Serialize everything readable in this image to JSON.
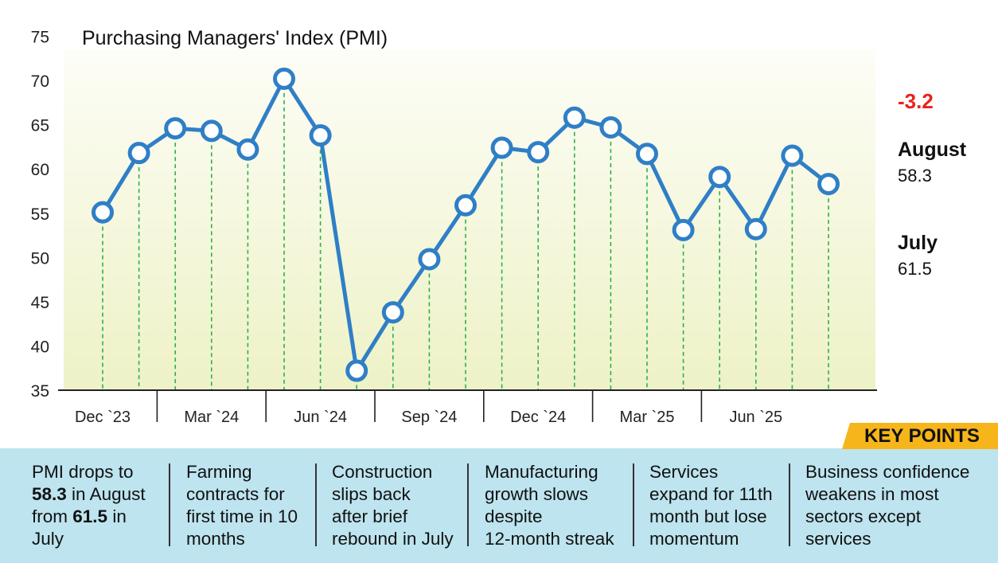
{
  "chart_data": {
    "type": "line",
    "title": "Purchasing Managers' Index (PMI)",
    "xlabel": "",
    "ylabel": "",
    "ylim": [
      35,
      75
    ],
    "yticks": [
      35,
      40,
      45,
      50,
      55,
      60,
      65,
      70,
      75
    ],
    "ytick_labels": [
      "35",
      "40",
      "45",
      "50",
      "55",
      "60",
      "65",
      "70",
      "75"
    ],
    "x": [
      "Dec '23",
      "Jan '24",
      "Feb '24",
      "Mar '24",
      "Apr '24",
      "May '24",
      "Jun '24",
      "Jul '24",
      "Aug '24",
      "Sep '24",
      "Oct '24",
      "Nov '24",
      "Dec '24",
      "Jan '25",
      "Feb '25",
      "Mar '25",
      "Apr '25",
      "May '25",
      "Jun '25",
      "Jul '25",
      "Aug '25"
    ],
    "xtick_labels": [
      {
        "label": "Dec `23",
        "index": 0
      },
      {
        "label": "Mar `24",
        "index": 3
      },
      {
        "label": "Jun `24",
        "index": 6
      },
      {
        "label": "Sep `24",
        "index": 9
      },
      {
        "label": "Dec `24",
        "index": 12
      },
      {
        "label": "Mar `25",
        "index": 15
      },
      {
        "label": "Jun `25",
        "index": 18
      }
    ],
    "series": [
      {
        "name": "PMI",
        "color": "#2f7fc6",
        "values": [
          55.1,
          61.8,
          64.6,
          64.3,
          62.2,
          70.2,
          63.8,
          37.2,
          43.8,
          49.8,
          55.9,
          62.4,
          61.9,
          65.8,
          64.7,
          61.7,
          53.1,
          59.1,
          53.2,
          61.5,
          58.3
        ]
      }
    ],
    "grid": false,
    "drop_lines": true,
    "legend": "none"
  },
  "colors": {
    "line": "#2f7fc6",
    "drop_line": "#2bb24c",
    "change": "#e8231c",
    "key_points_tab": "#f6b51a",
    "key_points_band": "#bde4ef",
    "plot_bg_top": "#fdfdf7",
    "plot_bg_bottom": "#eef2c6"
  },
  "summary": {
    "change": "-3.2",
    "current_month": "August",
    "current_value": "58.3",
    "previous_month": "July",
    "previous_value": "61.5"
  },
  "key_points": {
    "title": "KEY POINTS",
    "items": [
      {
        "lines": [
          [
            {
              "t": "PMI drops to",
              "b": false
            }
          ],
          [
            {
              "t": "58.3",
              "b": true
            },
            {
              "t": " in August",
              "b": false
            }
          ],
          [
            {
              "t": "from ",
              "b": false
            },
            {
              "t": "61.5",
              "b": true
            },
            {
              "t": " in",
              "b": false
            }
          ],
          [
            {
              "t": "July",
              "b": false
            }
          ]
        ]
      },
      {
        "lines": [
          [
            {
              "t": "Farming",
              "b": false
            }
          ],
          [
            {
              "t": "contracts for",
              "b": false
            }
          ],
          [
            {
              "t": "first time in 10",
              "b": false
            }
          ],
          [
            {
              "t": "months",
              "b": false
            }
          ]
        ]
      },
      {
        "lines": [
          [
            {
              "t": "Construction",
              "b": false
            }
          ],
          [
            {
              "t": "slips back",
              "b": false
            }
          ],
          [
            {
              "t": "after brief",
              "b": false
            }
          ],
          [
            {
              "t": "rebound in July",
              "b": false
            }
          ]
        ]
      },
      {
        "lines": [
          [
            {
              "t": "Manufacturing",
              "b": false
            }
          ],
          [
            {
              "t": "growth slows",
              "b": false
            }
          ],
          [
            {
              "t": "despite",
              "b": false
            }
          ],
          [
            {
              "t": "12-month streak",
              "b": false
            }
          ]
        ]
      },
      {
        "lines": [
          [
            {
              "t": "Services",
              "b": false
            }
          ],
          [
            {
              "t": "expand for 11th",
              "b": false
            }
          ],
          [
            {
              "t": "month but lose",
              "b": false
            }
          ],
          [
            {
              "t": "momentum",
              "b": false
            }
          ]
        ]
      },
      {
        "lines": [
          [
            {
              "t": "Business confidence",
              "b": false
            }
          ],
          [
            {
              "t": "weakens in most",
              "b": false
            }
          ],
          [
            {
              "t": "sectors except",
              "b": false
            }
          ],
          [
            {
              "t": "services",
              "b": false
            }
          ]
        ]
      }
    ]
  }
}
